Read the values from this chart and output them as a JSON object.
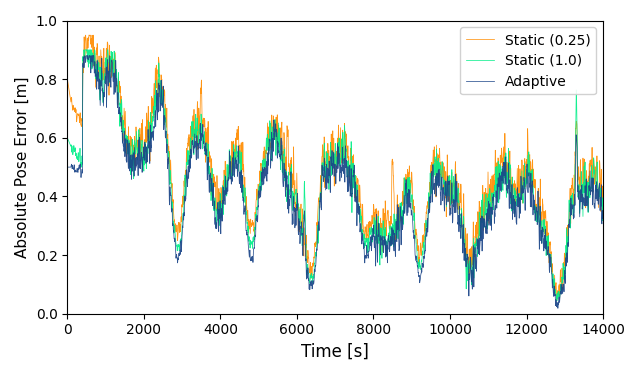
{
  "title": "",
  "xlabel": "Time [s]",
  "ylabel": "Absolute Pose Error [m]",
  "xlim": [
    0,
    14000
  ],
  "ylim": [
    0.0,
    1.0
  ],
  "xticks": [
    0,
    2000,
    4000,
    6000,
    8000,
    10000,
    12000,
    14000
  ],
  "yticks": [
    0.0,
    0.2,
    0.4,
    0.6,
    0.8,
    1.0
  ],
  "colors": {
    "static_025": "#FF8C00",
    "static_10": "#00EE88",
    "adaptive": "#1A4488"
  },
  "legend": [
    "Static (0.25)",
    "Static (1.0)",
    "Adaptive"
  ],
  "n_points": 2800,
  "seed": 42
}
